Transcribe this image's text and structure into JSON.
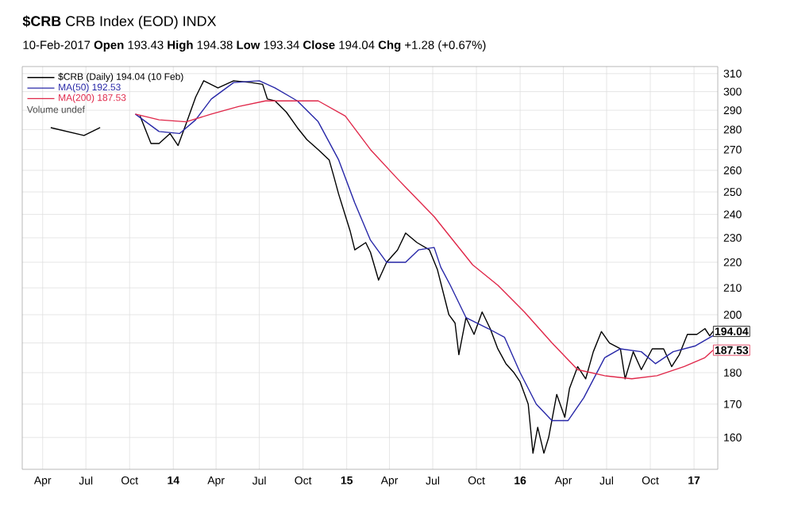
{
  "chart_data": {
    "type": "line",
    "title": "**$CRB** CRB Index (EOD)  INDX",
    "subtitle": "10-Feb-2017     **Open** 193.43  **High** 194.38  **Low** 193.34  **Close** 194.04  **Chg** +1.28 (+0.67%)",
    "series": [
      {
        "name": "$CRB (Daily) 194.04 (10 Feb)",
        "color": "#000000",
        "x": [
          "2013-04-18",
          "2013-06-27",
          "2013-07-31",
          "2013-09-15",
          "2013-10-23",
          "2013-11-15",
          "2013-12-02",
          "2013-12-25",
          "2014-01-11",
          "2014-01-28",
          "2014-02-17",
          "2014-03-06",
          "2014-04-05",
          "2014-05-08",
          "2014-06-14",
          "2014-07-08",
          "2014-07-18",
          "2014-08-03",
          "2014-08-27",
          "2014-09-19",
          "2014-10-09",
          "2014-11-02",
          "2014-11-25",
          "2014-12-05",
          "2014-12-15",
          "2015-01-08",
          "2015-01-18",
          "2015-02-10",
          "2015-02-20",
          "2015-03-09",
          "2015-03-26",
          "2015-04-18",
          "2015-05-05",
          "2015-05-29",
          "2015-06-24",
          "2015-07-11",
          "2015-08-04",
          "2015-08-17",
          "2015-08-25",
          "2015-09-09",
          "2015-09-26",
          "2015-10-13",
          "2015-10-30",
          "2015-11-15",
          "2015-12-02",
          "2015-12-19",
          "2016-01-01",
          "2016-01-18",
          "2016-01-28",
          "2016-02-07",
          "2016-02-20",
          "2016-03-01",
          "2016-03-18",
          "2016-04-04",
          "2016-04-14",
          "2016-05-01",
          "2016-05-18",
          "2016-06-03",
          "2016-06-20",
          "2016-07-07",
          "2016-07-30",
          "2016-08-09",
          "2016-08-26",
          "2016-09-12",
          "2016-10-05",
          "2016-10-29",
          "2016-11-15",
          "2016-12-01",
          "2016-12-18",
          "2017-01-07",
          "2017-01-24",
          "2017-02-03",
          "2017-02-10"
        ],
        "values": [
          281,
          277,
          281,
          null,
          287,
          273,
          273,
          278,
          272,
          283,
          297,
          306,
          302,
          306,
          305,
          304,
          296,
          295,
          289,
          281,
          275,
          270,
          265,
          257,
          249,
          233,
          225,
          228,
          224,
          213,
          220,
          225,
          232,
          228,
          225,
          217,
          200,
          197,
          186,
          199,
          193,
          201,
          195,
          188,
          183,
          180,
          177,
          170,
          155.5,
          163,
          155.5,
          160,
          173,
          166,
          175,
          182,
          178,
          187,
          194,
          190,
          188,
          178,
          187,
          181,
          188,
          188,
          182,
          186,
          193,
          193,
          195,
          192.5,
          194.04
        ]
      },
      {
        "name": "MA(50) 192.53",
        "color": "#2828a8",
        "x": [
          "2013-10-13",
          "2013-12-02",
          "2014-01-14",
          "2014-02-17",
          "2014-03-22",
          "2014-05-08",
          "2014-07-01",
          "2014-08-03",
          "2014-09-19",
          "2014-11-02",
          "2014-12-15",
          "2015-01-18",
          "2015-02-20",
          "2015-03-26",
          "2015-05-05",
          "2015-06-01",
          "2015-07-04",
          "2015-07-18",
          "2015-08-07",
          "2015-09-09",
          "2015-10-26",
          "2015-11-29",
          "2016-01-01",
          "2016-02-04",
          "2016-03-08",
          "2016-04-11",
          "2016-05-14",
          "2016-06-27",
          "2016-07-30",
          "2016-09-12",
          "2016-10-12",
          "2016-11-18",
          "2017-01-04",
          "2017-02-10"
        ],
        "values": [
          288,
          279,
          278,
          285,
          296,
          305,
          306,
          302,
          295,
          284,
          265,
          245,
          229,
          220,
          220,
          225,
          226,
          218,
          211,
          199,
          195,
          192,
          180,
          170,
          165,
          165,
          172,
          185,
          188,
          187,
          183,
          187,
          189,
          192.53
        ]
      },
      {
        "name": "MA(200) 187.53",
        "color": "#e0284a",
        "x": [
          "2013-10-13",
          "2013-12-02",
          "2014-01-28",
          "2014-03-22",
          "2014-05-18",
          "2014-07-14",
          "2014-09-06",
          "2014-11-02",
          "2014-12-29",
          "2015-02-20",
          "2015-04-18",
          "2015-07-04",
          "2015-09-23",
          "2015-11-15",
          "2016-01-10",
          "2016-03-08",
          "2016-05-01",
          "2016-06-27",
          "2016-08-23",
          "2016-10-15",
          "2016-12-11",
          "2017-01-24",
          "2017-02-10"
        ],
        "values": [
          288,
          285,
          284,
          288,
          292,
          295,
          295,
          295,
          287,
          270,
          256,
          239,
          219,
          211,
          201,
          190,
          181,
          179,
          178,
          179,
          182,
          185,
          187.53
        ]
      }
    ],
    "annotations": [
      "Volume undef",
      {
        "text": "194.04",
        "x": "2017-02-10",
        "y": 194.04
      },
      {
        "text": "187.53",
        "x": "2017-02-10",
        "y": 187.53
      }
    ],
    "xlim": [
      "2013-02-17",
      "2017-02-20"
    ],
    "xticks": [
      {
        "value": "2013-04-01",
        "label": "Apr"
      },
      {
        "value": "2013-07-01",
        "label": "Jul"
      },
      {
        "value": "2013-10-01",
        "label": "Oct"
      },
      {
        "value": "2014-01-01",
        "label": "**14**"
      },
      {
        "value": "2014-04-01",
        "label": "Apr"
      },
      {
        "value": "2014-07-01",
        "label": "Jul"
      },
      {
        "value": "2014-10-01",
        "label": "Oct"
      },
      {
        "value": "2015-01-01",
        "label": "**15**"
      },
      {
        "value": "2015-04-01",
        "label": "Apr"
      },
      {
        "value": "2015-07-01",
        "label": "Jul"
      },
      {
        "value": "2015-10-01",
        "label": "Oct"
      },
      {
        "value": "2016-01-01",
        "label": "**16**"
      },
      {
        "value": "2016-04-01",
        "label": "Apr"
      },
      {
        "value": "2016-07-01",
        "label": "Jul"
      },
      {
        "value": "2016-10-01",
        "label": "Oct"
      },
      {
        "value": "2017-01-01",
        "label": "**17**"
      }
    ],
    "ylim": [
      151,
      314
    ],
    "yticks": [
      160,
      170,
      180,
      {
        "value": 190,
        "label": null
      },
      200,
      210,
      220,
      230,
      240,
      250,
      260,
      270,
      280,
      290,
      300,
      310
    ],
    "log": "y",
    "grid": true,
    "legend": "top left",
    "marker": "none",
    "line_style": "solid"
  }
}
